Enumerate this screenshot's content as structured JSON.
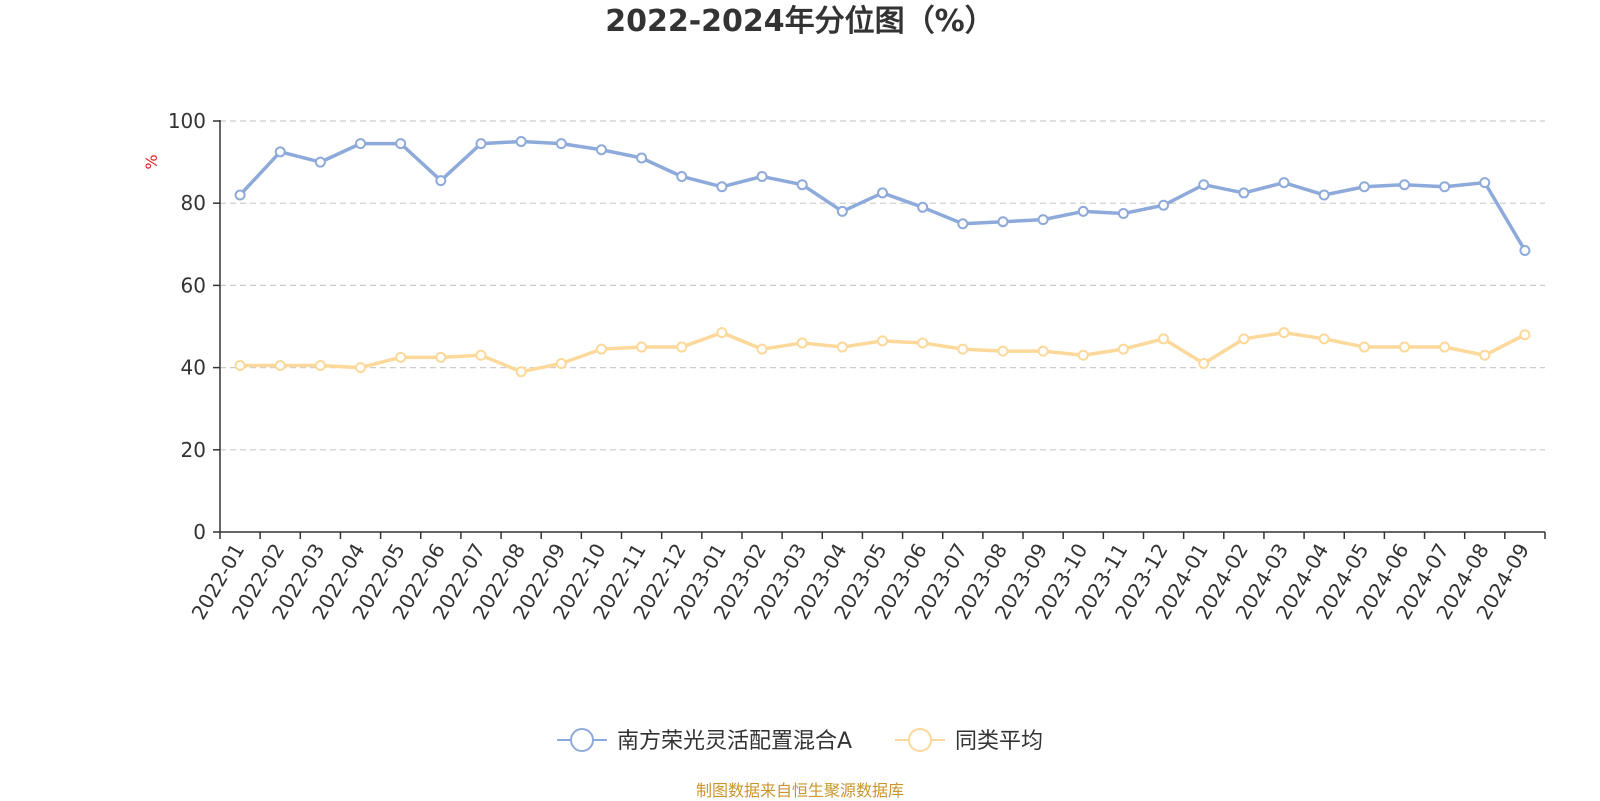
{
  "chart_data": {
    "type": "line",
    "title": "2022-2024年分位图（%）",
    "ylabel": "%",
    "xlabel": "",
    "ylim": [
      0,
      100
    ],
    "yticks": [
      0,
      20,
      40,
      60,
      80,
      100
    ],
    "grid": true,
    "legend_position": "bottom-center",
    "categories": [
      "2022-01",
      "2022-02",
      "2022-03",
      "2022-04",
      "2022-05",
      "2022-06",
      "2022-07",
      "2022-08",
      "2022-09",
      "2022-10",
      "2022-11",
      "2022-12",
      "2023-01",
      "2023-02",
      "2023-03",
      "2023-04",
      "2023-05",
      "2023-06",
      "2023-07",
      "2023-08",
      "2023-09",
      "2023-10",
      "2023-11",
      "2023-12",
      "2024-01",
      "2024-02",
      "2024-03",
      "2024-04",
      "2024-05",
      "2024-06",
      "2024-07",
      "2024-08",
      "2024-09"
    ],
    "series": [
      {
        "name": "南方荣光灵活配置混合A",
        "color": "#8eaadb",
        "values": [
          82,
          92.5,
          90,
          94.5,
          94.5,
          85.5,
          94.5,
          95,
          94.5,
          93,
          91,
          86.5,
          84,
          86.5,
          84.5,
          78,
          82.5,
          79,
          75,
          75.5,
          76,
          78,
          77.5,
          79.5,
          84.5,
          82.5,
          85,
          82,
          84,
          84.5,
          84,
          85,
          68.5
        ]
      },
      {
        "name": "同类平均",
        "color": "#fcd99a",
        "values": [
          40.5,
          40.5,
          40.5,
          40,
          42.5,
          42.5,
          43,
          39,
          41,
          44.5,
          45,
          45,
          48.5,
          44.5,
          46,
          45,
          46.5,
          46,
          44.5,
          44,
          44,
          43,
          44.5,
          47,
          41,
          47,
          48.5,
          47,
          45,
          45,
          45,
          43,
          48
        ]
      }
    ]
  },
  "source_note": {
    "text": "制图数据来自恒生聚源数据库",
    "color": "#c8962e"
  },
  "axis_colors": {
    "axis_line": "#333333",
    "grid_line": "#cccccc",
    "ylabel_color": "#e02020"
  }
}
